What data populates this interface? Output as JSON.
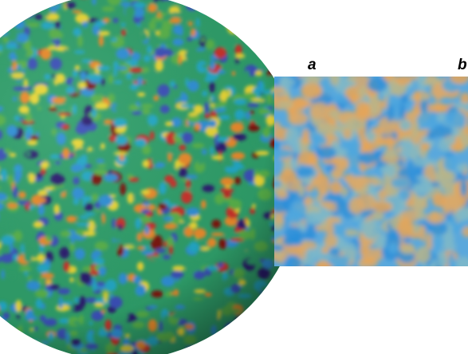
{
  "figure": {
    "panel_a_label": "a",
    "panel_b_label": "b"
  },
  "sphere": {
    "palette": [
      "#2a1a6e",
      "#3b4fb8",
      "#2f8fd6",
      "#23a7c6",
      "#2f9f6a",
      "#58b14a",
      "#e8d634",
      "#e98a2a",
      "#c8302a",
      "#7a1410"
    ]
  },
  "inset": {
    "palette": [
      "#2d8fd9",
      "#4fa7de",
      "#7fb9c8",
      "#b8b58a",
      "#d8a96c",
      "#e6a457"
    ]
  }
}
